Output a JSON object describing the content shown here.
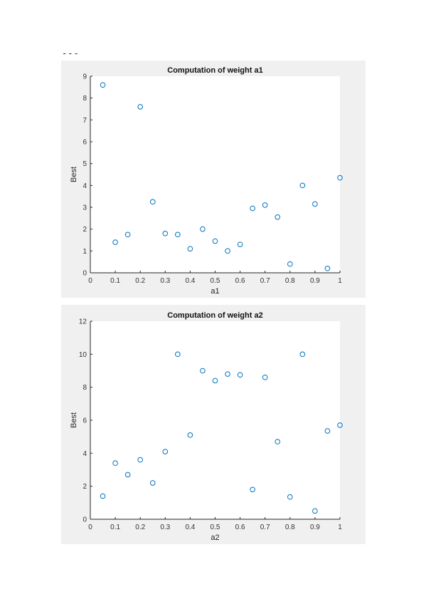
{
  "page": {
    "separator": "---"
  },
  "chart_data": [
    {
      "type": "scatter",
      "title": "Computation of weight a1",
      "xlabel": "a1",
      "ylabel": "Best",
      "xlim": [
        0,
        1
      ],
      "ylim": [
        0,
        9
      ],
      "xticks": [
        0,
        0.1,
        0.2,
        0.3,
        0.4,
        0.5,
        0.6,
        0.7,
        0.8,
        0.9,
        1
      ],
      "yticks": [
        0,
        1,
        2,
        3,
        4,
        5,
        6,
        7,
        8,
        9
      ],
      "grid": false,
      "marker": "o",
      "color": "#0072BD",
      "x": [
        0.05,
        0.1,
        0.15,
        0.2,
        0.25,
        0.3,
        0.35,
        0.4,
        0.45,
        0.5,
        0.55,
        0.6,
        0.65,
        0.7,
        0.75,
        0.8,
        0.85,
        0.9,
        0.95,
        1.0
      ],
      "y": [
        8.6,
        1.4,
        1.75,
        7.6,
        3.25,
        1.8,
        1.75,
        1.1,
        2.0,
        1.45,
        1.0,
        1.3,
        2.95,
        3.1,
        2.55,
        0.4,
        4.0,
        3.15,
        0.2,
        4.35
      ]
    },
    {
      "type": "scatter",
      "title": "Computation of weight a2",
      "xlabel": "a2",
      "ylabel": "Best",
      "xlim": [
        0,
        1
      ],
      "ylim": [
        0,
        12
      ],
      "xticks": [
        0,
        0.1,
        0.2,
        0.3,
        0.4,
        0.5,
        0.6,
        0.7,
        0.8,
        0.9,
        1
      ],
      "yticks": [
        0,
        2,
        4,
        6,
        8,
        10,
        12
      ],
      "grid": false,
      "marker": "o",
      "color": "#0072BD",
      "x": [
        0.05,
        0.1,
        0.15,
        0.2,
        0.25,
        0.3,
        0.35,
        0.4,
        0.45,
        0.5,
        0.55,
        0.6,
        0.65,
        0.7,
        0.75,
        0.8,
        0.85,
        0.9,
        0.95,
        1.0
      ],
      "y": [
        1.4,
        3.4,
        2.7,
        3.6,
        2.2,
        4.1,
        10.0,
        5.1,
        9.0,
        8.4,
        8.8,
        8.75,
        1.8,
        8.6,
        4.7,
        1.35,
        10.0,
        0.5,
        5.35,
        5.7
      ]
    }
  ]
}
